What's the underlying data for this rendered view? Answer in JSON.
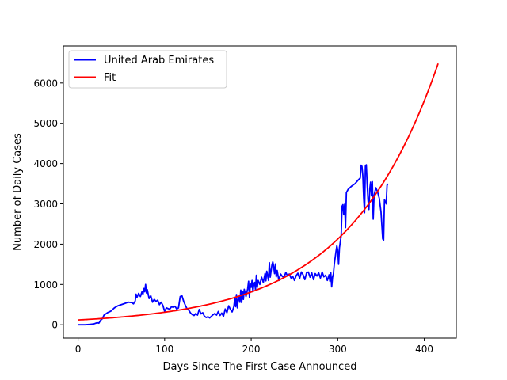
{
  "chart_data": {
    "type": "line",
    "title": "",
    "xlabel": "Days Since The First Case Announced",
    "ylabel": "Number of Daily Cases",
    "xlim": [
      -17,
      437
    ],
    "ylim": [
      -330,
      6920
    ],
    "xticks": [
      0,
      100,
      200,
      300,
      400
    ],
    "yticks": [
      0,
      1000,
      2000,
      3000,
      4000,
      5000,
      6000
    ],
    "grid": false,
    "legend_position": "upper-left",
    "series": [
      {
        "name": "United Arab Emirates",
        "color": "#0000ff",
        "points": [
          [
            0,
            0
          ],
          [
            8,
            0
          ],
          [
            14,
            10
          ],
          [
            18,
            20
          ],
          [
            22,
            50
          ],
          [
            24,
            40
          ],
          [
            26,
            110
          ],
          [
            28,
            150
          ],
          [
            30,
            240
          ],
          [
            34,
            300
          ],
          [
            38,
            340
          ],
          [
            42,
            420
          ],
          [
            46,
            470
          ],
          [
            50,
            500
          ],
          [
            54,
            530
          ],
          [
            58,
            560
          ],
          [
            62,
            550
          ],
          [
            64,
            520
          ],
          [
            66,
            590
          ],
          [
            67,
            760
          ],
          [
            68,
            680
          ],
          [
            70,
            780
          ],
          [
            72,
            700
          ],
          [
            74,
            830
          ],
          [
            75,
            760
          ],
          [
            76,
            900
          ],
          [
            77,
            820
          ],
          [
            78,
            1000
          ],
          [
            79,
            790
          ],
          [
            80,
            870
          ],
          [
            82,
            650
          ],
          [
            84,
            720
          ],
          [
            86,
            560
          ],
          [
            88,
            630
          ],
          [
            90,
            580
          ],
          [
            92,
            610
          ],
          [
            94,
            500
          ],
          [
            96,
            560
          ],
          [
            98,
            480
          ],
          [
            100,
            330
          ],
          [
            102,
            420
          ],
          [
            104,
            400
          ],
          [
            106,
            390
          ],
          [
            108,
            450
          ],
          [
            110,
            430
          ],
          [
            112,
            460
          ],
          [
            114,
            390
          ],
          [
            116,
            420
          ],
          [
            118,
            700
          ],
          [
            120,
            720
          ],
          [
            122,
            580
          ],
          [
            124,
            480
          ],
          [
            126,
            390
          ],
          [
            128,
            360
          ],
          [
            130,
            290
          ],
          [
            132,
            250
          ],
          [
            134,
            230
          ],
          [
            136,
            280
          ],
          [
            138,
            240
          ],
          [
            140,
            380
          ],
          [
            142,
            270
          ],
          [
            144,
            300
          ],
          [
            146,
            210
          ],
          [
            148,
            180
          ],
          [
            150,
            200
          ],
          [
            152,
            170
          ],
          [
            154,
            210
          ],
          [
            156,
            250
          ],
          [
            158,
            280
          ],
          [
            160,
            240
          ],
          [
            162,
            330
          ],
          [
            164,
            230
          ],
          [
            166,
            290
          ],
          [
            168,
            210
          ],
          [
            170,
            390
          ],
          [
            172,
            300
          ],
          [
            174,
            470
          ],
          [
            176,
            380
          ],
          [
            178,
            320
          ],
          [
            180,
            450
          ],
          [
            181,
            640
          ],
          [
            182,
            450
          ],
          [
            183,
            750
          ],
          [
            184,
            420
          ],
          [
            185,
            620
          ],
          [
            186,
            700
          ],
          [
            187,
            560
          ],
          [
            188,
            860
          ],
          [
            189,
            550
          ],
          [
            190,
            830
          ],
          [
            191,
            630
          ],
          [
            192,
            880
          ],
          [
            194,
            700
          ],
          [
            196,
            900
          ],
          [
            197,
            1080
          ],
          [
            198,
            680
          ],
          [
            199,
            1010
          ],
          [
            200,
            930
          ],
          [
            201,
            1100
          ],
          [
            202,
            820
          ],
          [
            203,
            1020
          ],
          [
            204,
            1050
          ],
          [
            205,
            870
          ],
          [
            206,
            1230
          ],
          [
            207,
            930
          ],
          [
            208,
            1100
          ],
          [
            210,
            1000
          ],
          [
            212,
            1180
          ],
          [
            214,
            1050
          ],
          [
            216,
            1270
          ],
          [
            217,
            1090
          ],
          [
            218,
            1330
          ],
          [
            220,
            1100
          ],
          [
            221,
            1540
          ],
          [
            222,
            1180
          ],
          [
            224,
            1490
          ],
          [
            225,
            1560
          ],
          [
            226,
            1440
          ],
          [
            227,
            1270
          ],
          [
            228,
            1510
          ],
          [
            229,
            1190
          ],
          [
            230,
            1350
          ],
          [
            232,
            1100
          ],
          [
            234,
            1260
          ],
          [
            236,
            1200
          ],
          [
            238,
            1180
          ],
          [
            240,
            1300
          ],
          [
            242,
            1210
          ],
          [
            244,
            1260
          ],
          [
            246,
            1160
          ],
          [
            248,
            1200
          ],
          [
            250,
            1100
          ],
          [
            252,
            1220
          ],
          [
            254,
            1280
          ],
          [
            256,
            1150
          ],
          [
            258,
            1310
          ],
          [
            260,
            1240
          ],
          [
            262,
            1120
          ],
          [
            264,
            1290
          ],
          [
            266,
            1310
          ],
          [
            268,
            1180
          ],
          [
            270,
            1290
          ],
          [
            272,
            1120
          ],
          [
            274,
            1270
          ],
          [
            276,
            1210
          ],
          [
            278,
            1290
          ],
          [
            280,
            1160
          ],
          [
            282,
            1310
          ],
          [
            284,
            1190
          ],
          [
            286,
            1230
          ],
          [
            288,
            1100
          ],
          [
            290,
            1240
          ],
          [
            291,
            1080
          ],
          [
            292,
            1290
          ],
          [
            293,
            940
          ],
          [
            294,
            1180
          ],
          [
            295,
            1260
          ],
          [
            296,
            1500
          ],
          [
            298,
            1820
          ],
          [
            299,
            1960
          ],
          [
            300,
            1850
          ],
          [
            301,
            1500
          ],
          [
            302,
            1910
          ],
          [
            304,
            2210
          ],
          [
            305,
            2940
          ],
          [
            306,
            2980
          ],
          [
            307,
            2730
          ],
          [
            308,
            2990
          ],
          [
            309,
            2410
          ],
          [
            310,
            3280
          ],
          [
            312,
            3360
          ],
          [
            316,
            3440
          ],
          [
            320,
            3500
          ],
          [
            324,
            3600
          ],
          [
            326,
            3640
          ],
          [
            327,
            3960
          ],
          [
            328,
            3930
          ],
          [
            329,
            3700
          ],
          [
            330,
            3150
          ],
          [
            331,
            2780
          ],
          [
            332,
            3940
          ],
          [
            333,
            3970
          ],
          [
            334,
            3500
          ],
          [
            335,
            3100
          ],
          [
            336,
            2860
          ],
          [
            337,
            3370
          ],
          [
            338,
            3540
          ],
          [
            339,
            3200
          ],
          [
            340,
            3550
          ],
          [
            341,
            2620
          ],
          [
            342,
            3210
          ],
          [
            344,
            3400
          ],
          [
            346,
            3300
          ],
          [
            348,
            3140
          ],
          [
            350,
            2800
          ],
          [
            352,
            2130
          ],
          [
            353,
            2100
          ],
          [
            354,
            3100
          ],
          [
            356,
            3000
          ],
          [
            357,
            3460
          ],
          [
            358,
            3500
          ]
        ]
      },
      {
        "name": "Fit",
        "color": "#ff0000",
        "function": "exponential",
        "a": 119,
        "b": 0.00961,
        "x_range": [
          0,
          416
        ],
        "points": [
          [
            0,
            119
          ],
          [
            50,
            192
          ],
          [
            100,
            311
          ],
          [
            150,
            502
          ],
          [
            200,
            811
          ],
          [
            250,
            1310
          ],
          [
            300,
            2117
          ],
          [
            350,
            3420
          ],
          [
            400,
            5525
          ],
          [
            416,
            6466
          ]
        ]
      }
    ]
  }
}
